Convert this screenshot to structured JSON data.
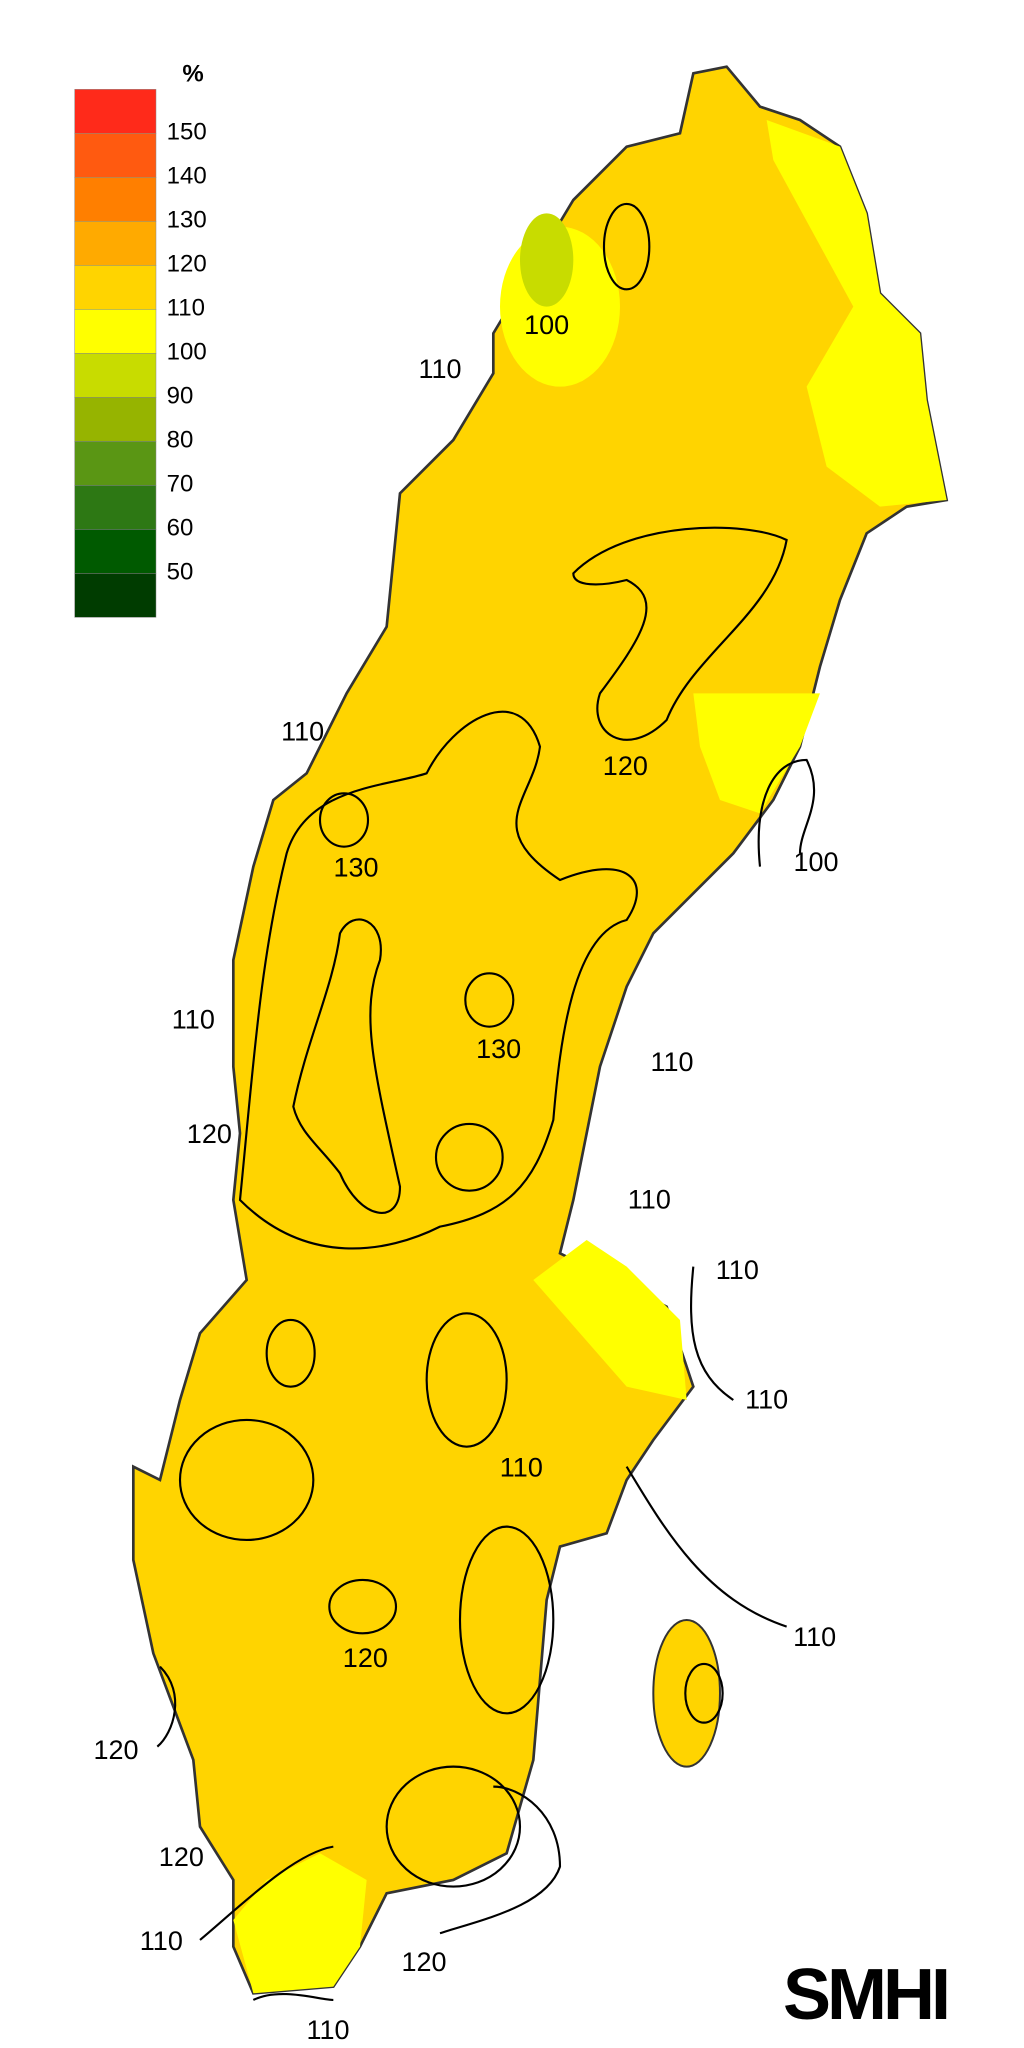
{
  "legend": {
    "unit": "%",
    "labels": [
      150,
      140,
      130,
      120,
      110,
      100,
      90,
      80,
      70,
      60,
      50
    ],
    "colors": [
      "#ff2a1a",
      "#ff5a10",
      "#ff7f00",
      "#ffaa00",
      "#ffd400",
      "#ffff00",
      "#c8dc00",
      "#96b400",
      "#5a9614",
      "#2d7814",
      "#005a00",
      "#003c00"
    ]
  },
  "contour_labels": [
    100,
    110,
    110,
    130,
    120,
    100,
    110,
    130,
    110,
    120,
    110,
    110,
    110,
    110,
    120,
    110,
    120,
    120,
    110,
    120,
    110
  ],
  "logo": "SMHI"
}
